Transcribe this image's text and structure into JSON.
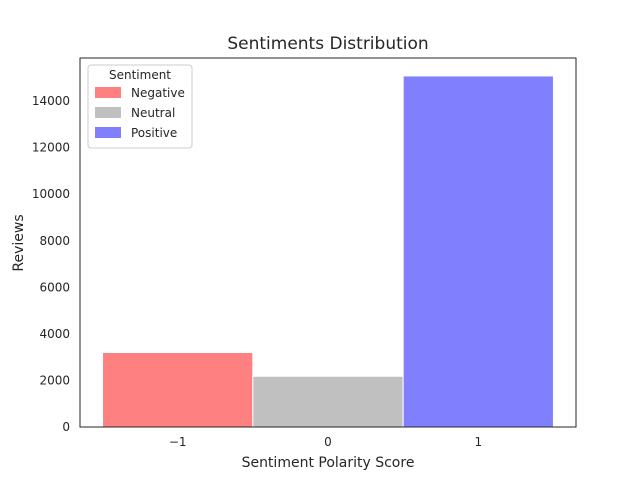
{
  "chart_data": {
    "type": "bar",
    "title": "Sentiments Distribution",
    "xlabel": "Sentiment Polarity Score",
    "ylabel": "Reviews",
    "x_ticks": [
      "−1",
      "0",
      "1"
    ],
    "y_ticks": [
      0,
      2000,
      4000,
      6000,
      8000,
      10000,
      12000,
      14000
    ],
    "ylim": [
      0,
      15850
    ],
    "xlim": [
      -1.65,
      1.65
    ],
    "grid": false,
    "legend": {
      "title": "Sentiment",
      "placement": "top-left"
    },
    "series": [
      {
        "name": "Negative",
        "x": -1,
        "value": 3200,
        "color": "#ff8080"
      },
      {
        "name": "Neutral",
        "x": 0,
        "value": 2180,
        "color": "#c0c0c0"
      },
      {
        "name": "Positive",
        "x": 1,
        "value": 15080,
        "color": "#8080ff"
      }
    ]
  }
}
